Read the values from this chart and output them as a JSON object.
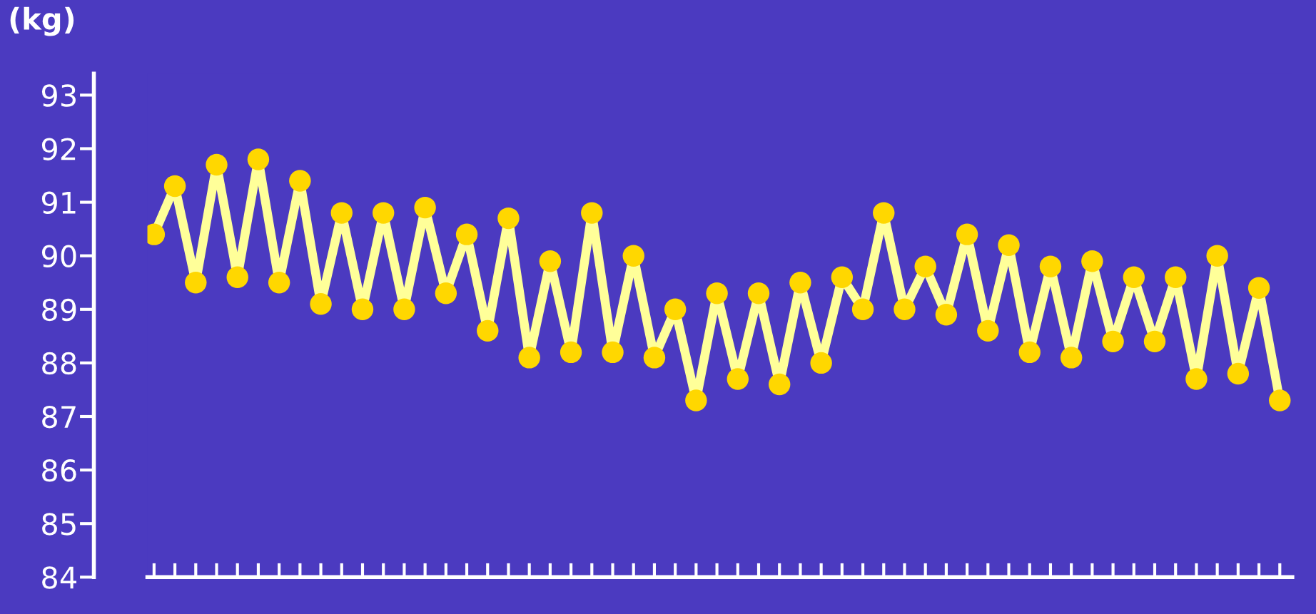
{
  "chart_data": {
    "type": "line",
    "ylabel": "(kg)",
    "categories": [
      null,
      null,
      null,
      null,
      null,
      null,
      null,
      null,
      null,
      null,
      null,
      null,
      null,
      null,
      null,
      null,
      null,
      null,
      null,
      null,
      null,
      null,
      null,
      null,
      null,
      null,
      null,
      null,
      null,
      null,
      null,
      null,
      null,
      null,
      null,
      null,
      null,
      null,
      null,
      null,
      null,
      null,
      null,
      null,
      null,
      null,
      null,
      null,
      null,
      null,
      null,
      null,
      null,
      null,
      null
    ],
    "series": [
      {
        "color": "#ffff99",
        "colors": [
          "#ffd700",
          "#ffd700",
          "#ffd700",
          "#ffd700",
          "#ffd700",
          "#ffd700",
          "#ffd700",
          "#ffd700",
          "#ffd700",
          "#ffd700",
          "#ffd700",
          "#ffd700",
          "#ffd700",
          "#ffd700",
          "#ffd700",
          "#ffd700",
          "#ffd700",
          "#ffd700",
          "#ffd700",
          "#ffd700",
          "#ffd700",
          "#ffd700",
          "#ffd700",
          "#ffd700",
          "#ffd700",
          "#ffd700",
          "#ffd700",
          "#ffd700",
          "#ffd700",
          "#ffd700",
          "#ffd700",
          "#ffd700",
          "#ffd700",
          "#ffd700",
          "#ffd700",
          "#ffd700",
          "#ffd700",
          "#ffd700",
          "#ffd700",
          "#ffd700",
          "#ffd700",
          "#ffd700",
          "#ffd700",
          "#ffd700",
          "#ffd700",
          "#ffd700",
          "#ffd700",
          "#ffd700",
          "#ffd700",
          "#ffd700",
          "#ffd700",
          "#ffd700",
          "#ffd700",
          "#ffd700",
          "#ffd700"
        ],
        "values": [
          90.4,
          91.3,
          89.5,
          91.7,
          89.6,
          91.8,
          89.5,
          91.4,
          89.1,
          90.8,
          89.0,
          90.8,
          89.0,
          90.9,
          89.3,
          90.4,
          88.6,
          90.7,
          88.1,
          89.9,
          88.2,
          90.8,
          88.2,
          90.0,
          88.1,
          89.0,
          87.3,
          89.3,
          87.7,
          89.3,
          87.6,
          89.5,
          88.0,
          89.6,
          89.0,
          90.8,
          89.0,
          89.8,
          88.9,
          90.4,
          88.6,
          90.2,
          88.2,
          89.8,
          88.1,
          89.9,
          88.4,
          89.6,
          88.4,
          89.6,
          87.7,
          90.0,
          87.8,
          89.4,
          87.3
        ]
      }
    ],
    "marker": "circle",
    "line_style": "solid",
    "ylim": [
      84,
      93.4
    ],
    "yticks": [
      84,
      85,
      86,
      87,
      88,
      89,
      90,
      91,
      92,
      93
    ],
    "tick_labels": "y",
    "grid": false,
    "legend": false
  }
}
